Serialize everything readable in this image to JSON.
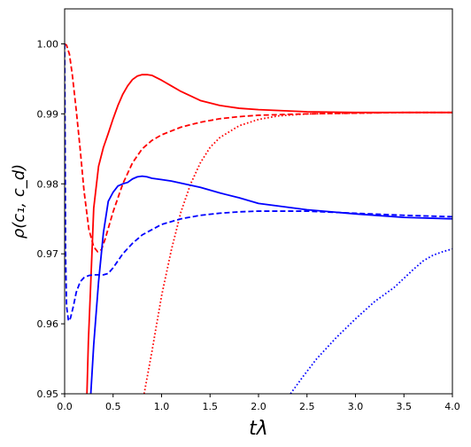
{
  "chart_data": {
    "type": "line",
    "title": "",
    "xlabel": "tλ",
    "ylabel": "ρ(c₁, c_d)",
    "xlim": [
      0.0,
      4.0
    ],
    "ylim": [
      0.95,
      1.005
    ],
    "xticks": [
      "0.0",
      "0.5",
      "1.0",
      "1.5",
      "2.0",
      "2.5",
      "3.0",
      "3.5",
      "4.0"
    ],
    "yticks": [
      "0.95",
      "0.96",
      "0.97",
      "0.98",
      "0.99",
      "1.00"
    ],
    "grid": false,
    "series": [
      {
        "color": "#ff0000",
        "style": "solid",
        "points": [
          [
            0.23,
            0.95
          ],
          [
            0.245,
            0.9575
          ],
          [
            0.27,
            0.966
          ],
          [
            0.3,
            0.9765
          ],
          [
            0.35,
            0.9825
          ],
          [
            0.4,
            0.9852
          ],
          [
            0.45,
            0.9872
          ],
          [
            0.5,
            0.9893
          ],
          [
            0.55,
            0.9912
          ],
          [
            0.6,
            0.9928
          ],
          [
            0.65,
            0.994
          ],
          [
            0.7,
            0.9949
          ],
          [
            0.75,
            0.9954
          ],
          [
            0.8,
            0.9956
          ],
          [
            0.85,
            0.9956
          ],
          [
            0.9,
            0.9955
          ],
          [
            1.0,
            0.9948
          ],
          [
            1.1,
            0.994
          ],
          [
            1.2,
            0.9932
          ],
          [
            1.4,
            0.9919
          ],
          [
            1.6,
            0.9912
          ],
          [
            1.8,
            0.9908
          ],
          [
            2.0,
            0.9906
          ],
          [
            2.5,
            0.9903
          ],
          [
            3.0,
            0.9902
          ],
          [
            3.5,
            0.9902
          ],
          [
            4.0,
            0.9902
          ]
        ]
      },
      {
        "color": "#ff0000",
        "style": "dashed",
        "points": [
          [
            0.0,
            1.0
          ],
          [
            0.02,
            0.9998
          ],
          [
            0.05,
            0.9985
          ],
          [
            0.08,
            0.9955
          ],
          [
            0.12,
            0.9905
          ],
          [
            0.16,
            0.985
          ],
          [
            0.2,
            0.979
          ],
          [
            0.25,
            0.9735
          ],
          [
            0.3,
            0.971
          ],
          [
            0.34,
            0.9703
          ],
          [
            0.38,
            0.9706
          ],
          [
            0.42,
            0.9722
          ],
          [
            0.5,
            0.976
          ],
          [
            0.6,
            0.98
          ],
          [
            0.7,
            0.983
          ],
          [
            0.8,
            0.985
          ],
          [
            0.9,
            0.9862
          ],
          [
            1.0,
            0.987
          ],
          [
            1.2,
            0.9881
          ],
          [
            1.4,
            0.9888
          ],
          [
            1.6,
            0.9893
          ],
          [
            1.8,
            0.9896
          ],
          [
            2.0,
            0.9898
          ],
          [
            2.5,
            0.99
          ],
          [
            3.0,
            0.9901
          ],
          [
            3.5,
            0.9902
          ],
          [
            4.0,
            0.9902
          ]
        ]
      },
      {
        "color": "#ff0000",
        "style": "dotted",
        "points": [
          [
            0.82,
            0.95
          ],
          [
            0.9,
            0.956
          ],
          [
            1.0,
            0.964
          ],
          [
            1.1,
            0.9705
          ],
          [
            1.2,
            0.976
          ],
          [
            1.3,
            0.98
          ],
          [
            1.4,
            0.983
          ],
          [
            1.5,
            0.9852
          ],
          [
            1.6,
            0.9866
          ],
          [
            1.8,
            0.9883
          ],
          [
            2.0,
            0.9892
          ],
          [
            2.2,
            0.9897
          ],
          [
            2.5,
            0.99
          ],
          [
            3.0,
            0.9901
          ],
          [
            3.5,
            0.9902
          ],
          [
            4.0,
            0.9902
          ]
        ]
      },
      {
        "color": "#0000ff",
        "style": "solid",
        "points": [
          [
            0.27,
            0.95
          ],
          [
            0.3,
            0.957
          ],
          [
            0.35,
            0.966
          ],
          [
            0.4,
            0.973
          ],
          [
            0.45,
            0.9775
          ],
          [
            0.5,
            0.9788
          ],
          [
            0.55,
            0.9797
          ],
          [
            0.6,
            0.98
          ],
          [
            0.65,
            0.9802
          ],
          [
            0.7,
            0.9807
          ],
          [
            0.75,
            0.981
          ],
          [
            0.8,
            0.9811
          ],
          [
            0.85,
            0.981
          ],
          [
            0.9,
            0.9808
          ],
          [
            1.0,
            0.9806
          ],
          [
            1.1,
            0.9804
          ],
          [
            1.2,
            0.9801
          ],
          [
            1.4,
            0.9795
          ],
          [
            1.6,
            0.9787
          ],
          [
            1.8,
            0.978
          ],
          [
            2.0,
            0.9772
          ],
          [
            2.5,
            0.9763
          ],
          [
            3.0,
            0.9757
          ],
          [
            3.5,
            0.9752
          ],
          [
            4.0,
            0.975
          ]
        ]
      },
      {
        "color": "#0000ff",
        "style": "dashed",
        "points": [
          [
            0.0,
            1.0
          ],
          [
            0.004,
            0.99
          ],
          [
            0.01,
            0.97
          ],
          [
            0.02,
            0.9625
          ],
          [
            0.04,
            0.9604
          ],
          [
            0.06,
            0.9608
          ],
          [
            0.09,
            0.9625
          ],
          [
            0.12,
            0.9645
          ],
          [
            0.16,
            0.966
          ],
          [
            0.2,
            0.9666
          ],
          [
            0.25,
            0.9669
          ],
          [
            0.3,
            0.967
          ],
          [
            0.4,
            0.967
          ],
          [
            0.45,
            0.9672
          ],
          [
            0.5,
            0.968
          ],
          [
            0.6,
            0.97
          ],
          [
            0.7,
            0.9715
          ],
          [
            0.8,
            0.9727
          ],
          [
            1.0,
            0.9742
          ],
          [
            1.2,
            0.975
          ],
          [
            1.4,
            0.9755
          ],
          [
            1.6,
            0.9758
          ],
          [
            1.8,
            0.976
          ],
          [
            2.0,
            0.9761
          ],
          [
            2.5,
            0.9761
          ],
          [
            3.0,
            0.9758
          ],
          [
            3.5,
            0.9755
          ],
          [
            4.0,
            0.9753
          ]
        ]
      },
      {
        "color": "#0000ff",
        "style": "dotted",
        "points": [
          [
            2.33,
            0.95
          ],
          [
            2.45,
            0.9523
          ],
          [
            2.6,
            0.955
          ],
          [
            2.8,
            0.958
          ],
          [
            3.0,
            0.9607
          ],
          [
            3.2,
            0.9632
          ],
          [
            3.4,
            0.9652
          ],
          [
            3.5,
            0.9665
          ],
          [
            3.6,
            0.9678
          ],
          [
            3.7,
            0.969
          ],
          [
            3.8,
            0.9698
          ],
          [
            3.9,
            0.9703
          ],
          [
            4.0,
            0.9707
          ]
        ]
      }
    ]
  }
}
